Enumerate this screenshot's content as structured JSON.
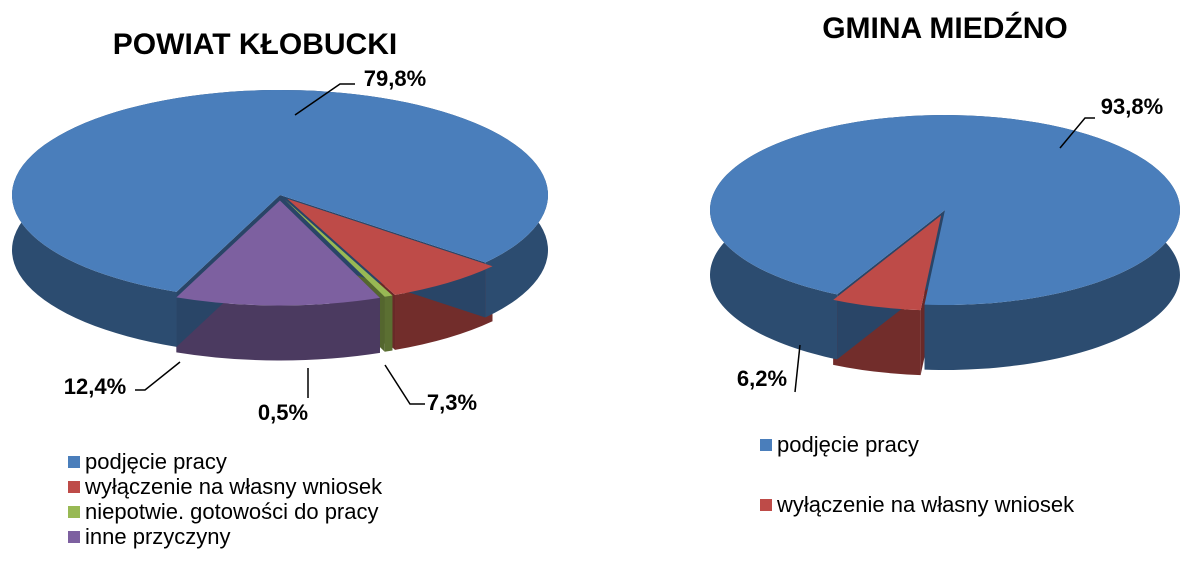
{
  "chart_data": [
    {
      "type": "pie",
      "title": "POWIAT KŁOBUCKI",
      "categories": [
        "podjęcie pracy",
        "wyłączenie na własny wniosek",
        "niepotwie. gotowości do pracy",
        "inne przyczyny"
      ],
      "values": [
        79.8,
        7.3,
        0.5,
        12.4
      ],
      "value_labels": [
        "79,8%",
        "7,3%",
        "0,5%",
        "12,4%"
      ],
      "colors": [
        "#4a7ebb",
        "#be4b48",
        "#98b954",
        "#7d60a0"
      ]
    },
    {
      "type": "pie",
      "title": "GMINA MIEDŹNO",
      "categories": [
        "podjęcie pracy",
        "wyłączenie na własny wniosek"
      ],
      "values": [
        93.8,
        6.2
      ],
      "value_labels": [
        "93,8%",
        "6,2%"
      ],
      "colors": [
        "#4a7ebb",
        "#be4b48"
      ]
    }
  ]
}
